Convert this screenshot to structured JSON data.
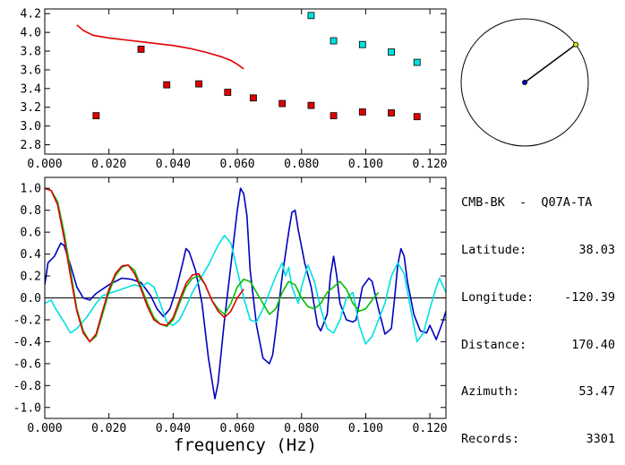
{
  "station": {
    "title": "CMB-BK  -  Q07A-TA"
  },
  "info": [
    {
      "label": "Latitude:",
      "value": "38.03"
    },
    {
      "label": "Longitude:",
      "value": "-120.39"
    },
    {
      "label": "Distance:",
      "value": "170.40"
    },
    {
      "label": "Azimuth:",
      "value": "53.47"
    },
    {
      "label": "Records:",
      "value": "3301"
    }
  ],
  "compass": {
    "azimuth_deg": 53.47
  },
  "chart_data": [
    {
      "type": "scatter",
      "xlim": [
        0.0,
        0.125
      ],
      "ylim": [
        2.7,
        4.25
      ],
      "xticks": [
        "0.000",
        "0.020",
        "0.040",
        "0.060",
        "0.080",
        "0.100",
        "0.120"
      ],
      "yticks": [
        "2.8",
        "3.0",
        "3.2",
        "3.4",
        "3.6",
        "3.8",
        "4.0",
        "4.2"
      ],
      "series": [
        {
          "kind": "line",
          "color": "#e00000",
          "points": [
            [
              0.01,
              4.08
            ],
            [
              0.012,
              4.02
            ],
            [
              0.015,
              3.97
            ],
            [
              0.02,
              3.94
            ],
            [
              0.025,
              3.92
            ],
            [
              0.03,
              3.9
            ],
            [
              0.035,
              3.88
            ],
            [
              0.04,
              3.86
            ],
            [
              0.045,
              3.83
            ],
            [
              0.05,
              3.79
            ],
            [
              0.055,
              3.74
            ],
            [
              0.058,
              3.7
            ],
            [
              0.06,
              3.66
            ],
            [
              0.062,
              3.61
            ]
          ]
        },
        {
          "kind": "markers",
          "color": "#e00000",
          "points": [
            [
              0.016,
              3.11
            ],
            [
              0.03,
              3.82
            ],
            [
              0.038,
              3.44
            ],
            [
              0.048,
              3.45
            ],
            [
              0.057,
              3.36
            ],
            [
              0.065,
              3.3
            ],
            [
              0.074,
              3.24
            ],
            [
              0.083,
              3.22
            ],
            [
              0.09,
              3.11
            ],
            [
              0.099,
              3.15
            ],
            [
              0.108,
              3.14
            ],
            [
              0.116,
              3.1
            ]
          ]
        },
        {
          "kind": "markers",
          "color": "#00e0e0",
          "points": [
            [
              0.083,
              4.18
            ],
            [
              0.09,
              3.91
            ],
            [
              0.099,
              3.87
            ],
            [
              0.108,
              3.79
            ],
            [
              0.116,
              3.68
            ]
          ]
        }
      ]
    },
    {
      "type": "line",
      "xlabel": "frequency (Hz)",
      "xlim": [
        0.0,
        0.125
      ],
      "ylim": [
        -1.1,
        1.1
      ],
      "xticks": [
        "0.000",
        "0.020",
        "0.040",
        "0.060",
        "0.080",
        "0.100",
        "0.120"
      ],
      "yticks": [
        "-1.0",
        "-0.8",
        "-0.6",
        "-0.4",
        "-0.2",
        "0.0",
        "0.2",
        "0.4",
        "0.6",
        "0.8",
        "1.0"
      ],
      "series": [
        {
          "color": "#0000c0",
          "points": [
            [
              0.0,
              0.12
            ],
            [
              0.001,
              0.32
            ],
            [
              0.003,
              0.38
            ],
            [
              0.005,
              0.5
            ],
            [
              0.006,
              0.48
            ],
            [
              0.008,
              0.3
            ],
            [
              0.01,
              0.1
            ],
            [
              0.012,
              0.0
            ],
            [
              0.014,
              -0.02
            ],
            [
              0.016,
              0.04
            ],
            [
              0.02,
              0.12
            ],
            [
              0.024,
              0.18
            ],
            [
              0.027,
              0.17
            ],
            [
              0.03,
              0.14
            ],
            [
              0.033,
              0.02
            ],
            [
              0.035,
              -0.1
            ],
            [
              0.037,
              -0.17
            ],
            [
              0.039,
              -0.1
            ],
            [
              0.041,
              0.08
            ],
            [
              0.043,
              0.32
            ],
            [
              0.044,
              0.45
            ],
            [
              0.045,
              0.42
            ],
            [
              0.047,
              0.25
            ],
            [
              0.049,
              -0.05
            ],
            [
              0.051,
              -0.55
            ],
            [
              0.053,
              -0.92
            ],
            [
              0.054,
              -0.78
            ],
            [
              0.056,
              -0.2
            ],
            [
              0.058,
              0.3
            ],
            [
              0.06,
              0.8
            ],
            [
              0.061,
              1.0
            ],
            [
              0.062,
              0.95
            ],
            [
              0.063,
              0.75
            ],
            [
              0.064,
              0.25
            ],
            [
              0.066,
              -0.25
            ],
            [
              0.068,
              -0.55
            ],
            [
              0.07,
              -0.6
            ],
            [
              0.071,
              -0.52
            ],
            [
              0.072,
              -0.3
            ],
            [
              0.074,
              0.2
            ],
            [
              0.076,
              0.6
            ],
            [
              0.077,
              0.78
            ],
            [
              0.078,
              0.8
            ],
            [
              0.079,
              0.62
            ],
            [
              0.081,
              0.32
            ],
            [
              0.083,
              0.1
            ],
            [
              0.085,
              -0.25
            ],
            [
              0.086,
              -0.3
            ],
            [
              0.088,
              -0.15
            ],
            [
              0.089,
              0.2
            ],
            [
              0.09,
              0.38
            ],
            [
              0.091,
              0.2
            ],
            [
              0.092,
              -0.05
            ],
            [
              0.094,
              -0.2
            ],
            [
              0.096,
              -0.22
            ],
            [
              0.097,
              -0.2
            ],
            [
              0.099,
              0.1
            ],
            [
              0.101,
              0.18
            ],
            [
              0.102,
              0.15
            ],
            [
              0.104,
              -0.1
            ],
            [
              0.106,
              -0.33
            ],
            [
              0.108,
              -0.28
            ],
            [
              0.109,
              0.0
            ],
            [
              0.11,
              0.3
            ],
            [
              0.111,
              0.45
            ],
            [
              0.112,
              0.38
            ],
            [
              0.113,
              0.15
            ],
            [
              0.115,
              -0.15
            ],
            [
              0.117,
              -0.3
            ],
            [
              0.119,
              -0.32
            ],
            [
              0.12,
              -0.25
            ],
            [
              0.122,
              -0.38
            ],
            [
              0.124,
              -0.22
            ],
            [
              0.125,
              -0.12
            ]
          ]
        },
        {
          "color": "#00e0e0",
          "points": [
            [
              0.0,
              -0.05
            ],
            [
              0.002,
              -0.02
            ],
            [
              0.003,
              -0.08
            ],
            [
              0.006,
              -0.22
            ],
            [
              0.008,
              -0.32
            ],
            [
              0.01,
              -0.28
            ],
            [
              0.013,
              -0.18
            ],
            [
              0.016,
              -0.05
            ],
            [
              0.018,
              0.02
            ],
            [
              0.021,
              0.05
            ],
            [
              0.024,
              0.08
            ],
            [
              0.026,
              0.1
            ],
            [
              0.028,
              0.12
            ],
            [
              0.03,
              0.1
            ],
            [
              0.032,
              0.14
            ],
            [
              0.034,
              0.1
            ],
            [
              0.036,
              -0.05
            ],
            [
              0.038,
              -0.22
            ],
            [
              0.04,
              -0.25
            ],
            [
              0.042,
              -0.2
            ],
            [
              0.044,
              -0.08
            ],
            [
              0.046,
              0.05
            ],
            [
              0.048,
              0.15
            ],
            [
              0.051,
              0.3
            ],
            [
              0.054,
              0.48
            ],
            [
              0.056,
              0.57
            ],
            [
              0.058,
              0.5
            ],
            [
              0.06,
              0.25
            ],
            [
              0.062,
              0.0
            ],
            [
              0.064,
              -0.2
            ],
            [
              0.066,
              -0.22
            ],
            [
              0.068,
              -0.1
            ],
            [
              0.07,
              0.05
            ],
            [
              0.072,
              0.2
            ],
            [
              0.074,
              0.32
            ],
            [
              0.075,
              0.2
            ],
            [
              0.076,
              0.28
            ],
            [
              0.077,
              0.1
            ],
            [
              0.079,
              -0.05
            ],
            [
              0.08,
              0.1
            ],
            [
              0.082,
              0.3
            ],
            [
              0.084,
              0.15
            ],
            [
              0.086,
              -0.1
            ],
            [
              0.088,
              -0.28
            ],
            [
              0.09,
              -0.32
            ],
            [
              0.092,
              -0.2
            ],
            [
              0.094,
              0.0
            ],
            [
              0.096,
              0.05
            ],
            [
              0.098,
              -0.25
            ],
            [
              0.1,
              -0.42
            ],
            [
              0.102,
              -0.35
            ],
            [
              0.104,
              -0.2
            ],
            [
              0.106,
              -0.05
            ],
            [
              0.108,
              0.2
            ],
            [
              0.11,
              0.32
            ],
            [
              0.112,
              0.22
            ],
            [
              0.114,
              -0.1
            ],
            [
              0.116,
              -0.4
            ],
            [
              0.118,
              -0.32
            ],
            [
              0.12,
              -0.1
            ],
            [
              0.122,
              0.1
            ],
            [
              0.123,
              0.18
            ],
            [
              0.125,
              0.05
            ]
          ]
        },
        {
          "color": "#00c000",
          "points": [
            [
              0.0,
              1.0
            ],
            [
              0.002,
              0.98
            ],
            [
              0.004,
              0.88
            ],
            [
              0.006,
              0.6
            ],
            [
              0.008,
              0.25
            ],
            [
              0.01,
              -0.1
            ],
            [
              0.012,
              -0.3
            ],
            [
              0.014,
              -0.4
            ],
            [
              0.016,
              -0.35
            ],
            [
              0.018,
              -0.15
            ],
            [
              0.02,
              0.05
            ],
            [
              0.022,
              0.2
            ],
            [
              0.024,
              0.28
            ],
            [
              0.026,
              0.3
            ],
            [
              0.028,
              0.25
            ],
            [
              0.03,
              0.1
            ],
            [
              0.032,
              -0.05
            ],
            [
              0.034,
              -0.18
            ],
            [
              0.036,
              -0.24
            ],
            [
              0.038,
              -0.26
            ],
            [
              0.04,
              -0.2
            ],
            [
              0.042,
              -0.05
            ],
            [
              0.044,
              0.1
            ],
            [
              0.046,
              0.18
            ],
            [
              0.048,
              0.2
            ],
            [
              0.05,
              0.12
            ],
            [
              0.052,
              -0.02
            ],
            [
              0.054,
              -0.1
            ],
            [
              0.056,
              -0.15
            ],
            [
              0.058,
              -0.05
            ],
            [
              0.06,
              0.1
            ],
            [
              0.062,
              0.17
            ],
            [
              0.064,
              0.15
            ],
            [
              0.066,
              0.05
            ],
            [
              0.068,
              -0.05
            ],
            [
              0.07,
              -0.15
            ],
            [
              0.072,
              -0.1
            ],
            [
              0.074,
              0.05
            ],
            [
              0.076,
              0.15
            ],
            [
              0.078,
              0.12
            ],
            [
              0.08,
              0.0
            ],
            [
              0.082,
              -0.08
            ],
            [
              0.084,
              -0.1
            ],
            [
              0.086,
              -0.05
            ],
            [
              0.088,
              0.05
            ],
            [
              0.09,
              0.1
            ],
            [
              0.092,
              0.15
            ],
            [
              0.094,
              0.08
            ],
            [
              0.096,
              -0.05
            ],
            [
              0.098,
              -0.12
            ],
            [
              0.1,
              -0.1
            ],
            [
              0.102,
              -0.02
            ],
            [
              0.104,
              0.05
            ]
          ]
        },
        {
          "color": "#e00000",
          "points": [
            [
              0.0,
              1.0
            ],
            [
              0.002,
              0.98
            ],
            [
              0.004,
              0.85
            ],
            [
              0.006,
              0.55
            ],
            [
              0.008,
              0.2
            ],
            [
              0.01,
              -0.12
            ],
            [
              0.012,
              -0.32
            ],
            [
              0.014,
              -0.4
            ],
            [
              0.016,
              -0.33
            ],
            [
              0.018,
              -0.12
            ],
            [
              0.02,
              0.08
            ],
            [
              0.022,
              0.22
            ],
            [
              0.024,
              0.29
            ],
            [
              0.026,
              0.3
            ],
            [
              0.028,
              0.22
            ],
            [
              0.03,
              0.08
            ],
            [
              0.032,
              -0.08
            ],
            [
              0.034,
              -0.2
            ],
            [
              0.036,
              -0.24
            ],
            [
              0.038,
              -0.25
            ],
            [
              0.04,
              -0.18
            ],
            [
              0.042,
              -0.02
            ],
            [
              0.044,
              0.13
            ],
            [
              0.046,
              0.21
            ],
            [
              0.048,
              0.22
            ],
            [
              0.05,
              0.12
            ],
            [
              0.052,
              -0.02
            ],
            [
              0.054,
              -0.12
            ],
            [
              0.056,
              -0.18
            ],
            [
              0.058,
              -0.12
            ],
            [
              0.06,
              0.0
            ],
            [
              0.062,
              0.08
            ]
          ]
        }
      ]
    }
  ]
}
